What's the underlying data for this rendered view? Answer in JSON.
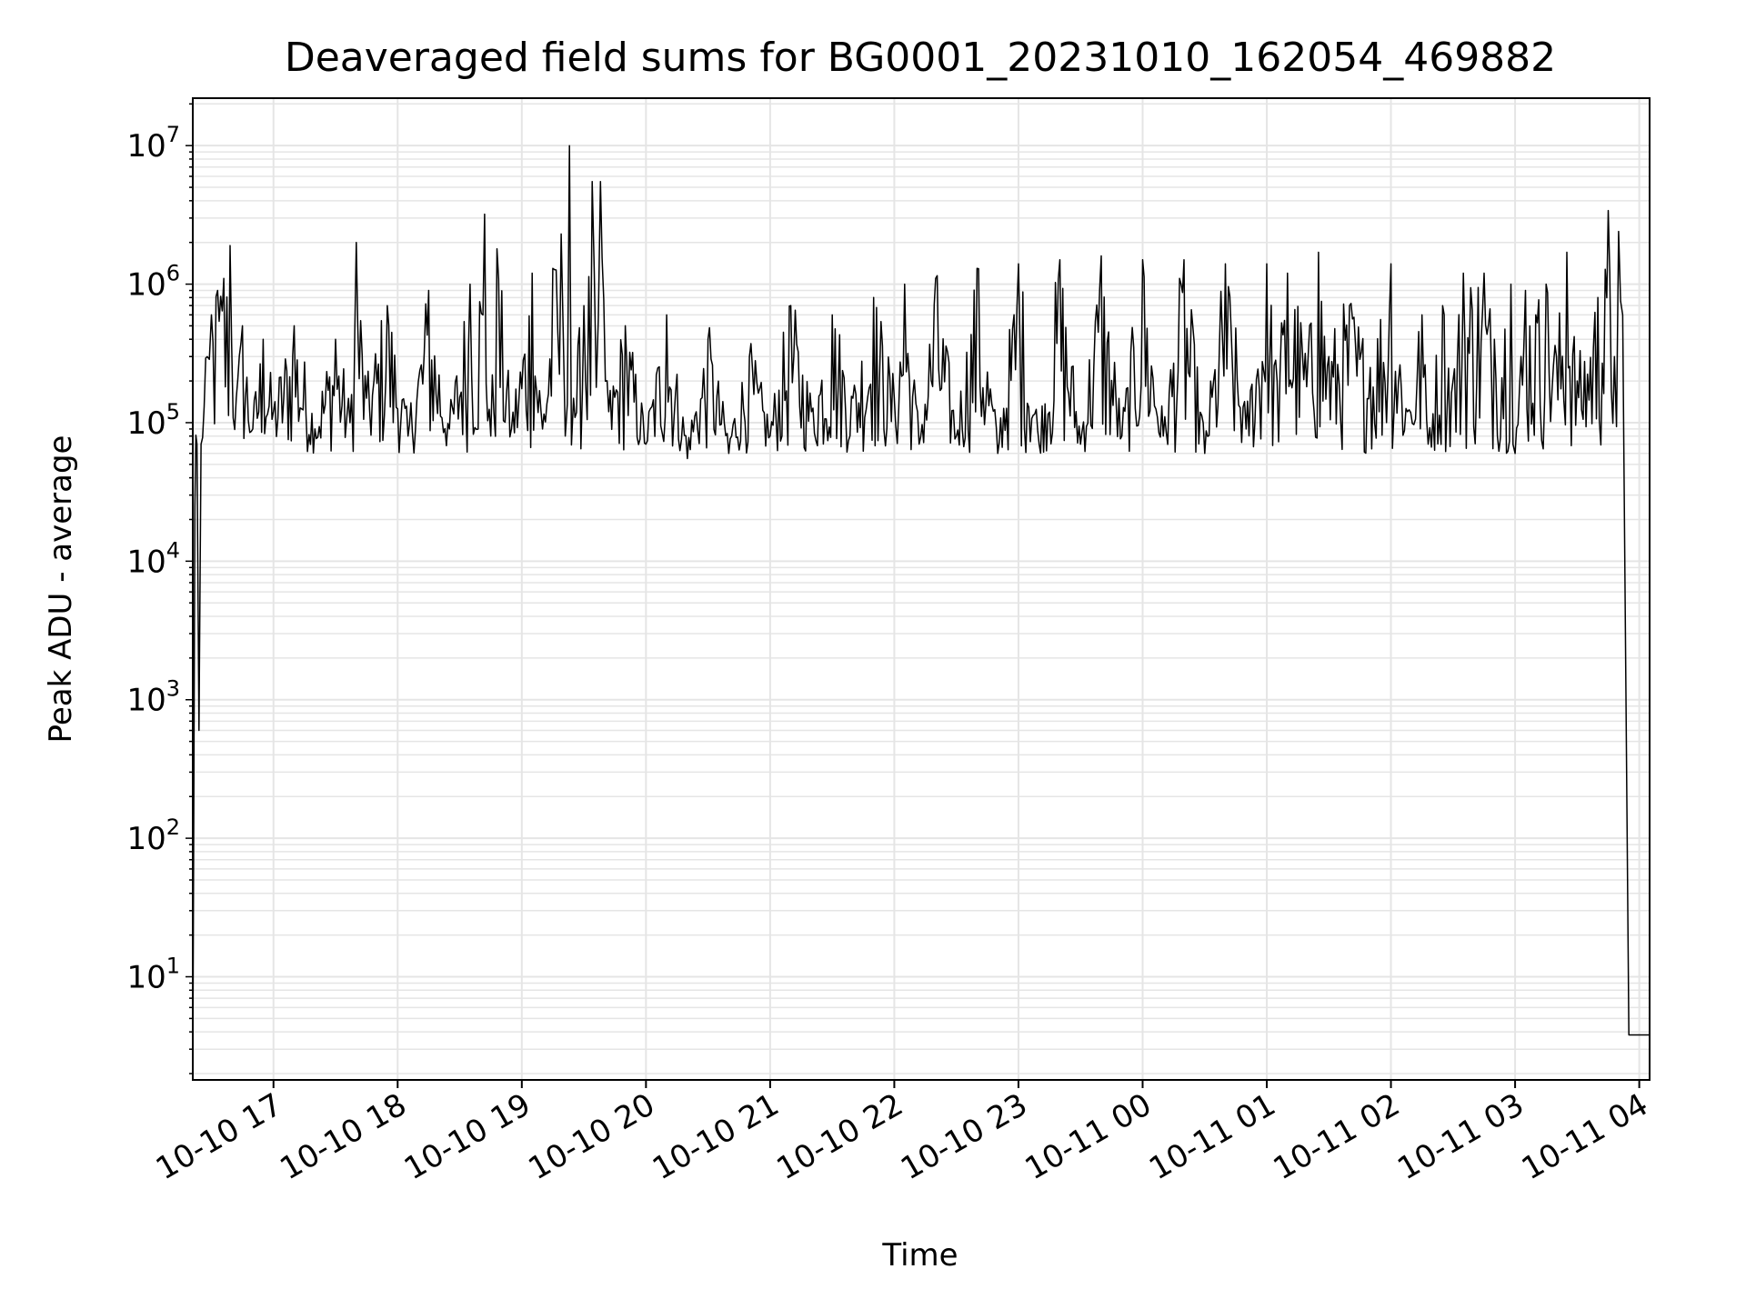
{
  "chart_data": {
    "type": "line",
    "title": "Deaveraged field sums for BG0001_20231010_162054_469882",
    "xlabel": "Time",
    "ylabel": "Peak ADU - average",
    "yscale": "log",
    "xlim": [
      "2023-10-10 16:21",
      "2023-10-11 04:05"
    ],
    "ylim": [
      1.8,
      22000000.0
    ],
    "grid": true,
    "line_color": "#000000",
    "grid_color": "#e5e5e5",
    "x_ticks": [
      {
        "value": "2023-10-10 17:00",
        "label": "10-10 17"
      },
      {
        "value": "2023-10-10 18:00",
        "label": "10-10 18"
      },
      {
        "value": "2023-10-10 19:00",
        "label": "10-10 19"
      },
      {
        "value": "2023-10-10 20:00",
        "label": "10-10 20"
      },
      {
        "value": "2023-10-10 21:00",
        "label": "10-10 21"
      },
      {
        "value": "2023-10-10 22:00",
        "label": "10-10 22"
      },
      {
        "value": "2023-10-10 23:00",
        "label": "10-10 23"
      },
      {
        "value": "2023-10-11 00:00",
        "label": "10-11 00"
      },
      {
        "value": "2023-10-11 01:00",
        "label": "10-11 01"
      },
      {
        "value": "2023-10-11 02:00",
        "label": "10-11 02"
      },
      {
        "value": "2023-10-11 03:00",
        "label": "10-11 03"
      },
      {
        "value": "2023-10-11 04:00",
        "label": "10-11 04"
      }
    ],
    "y_ticks": [
      {
        "value": 10,
        "base": "10",
        "exp": "1"
      },
      {
        "value": 100,
        "base": "10",
        "exp": "2"
      },
      {
        "value": 1000,
        "base": "10",
        "exp": "3"
      },
      {
        "value": 10000,
        "base": "10",
        "exp": "4"
      },
      {
        "value": 100000,
        "base": "10",
        "exp": "5"
      },
      {
        "value": 1000000,
        "base": "10",
        "exp": "6"
      },
      {
        "value": 10000000,
        "base": "10",
        "exp": "7"
      }
    ],
    "series": [
      {
        "points": [
          [
            "2023-10-10 16:21",
            1.8
          ],
          [
            "2023-10-10 16:22",
            25000
          ],
          [
            "2023-10-10 16:23",
            70000
          ],
          [
            "2023-10-10 16:24",
            600
          ],
          [
            "2023-10-10 16:25",
            70000
          ],
          [
            "2023-10-10 16:28",
            300000
          ],
          [
            "2023-10-10 16:30",
            600000
          ],
          [
            "2023-10-10 16:33",
            900000
          ],
          [
            "2023-10-10 16:36",
            1100000
          ],
          [
            "2023-10-10 16:39",
            1900000
          ],
          [
            "2023-10-10 16:42",
            150000
          ],
          [
            "2023-10-10 16:45",
            500000
          ],
          [
            "2023-10-10 16:50",
            90000
          ],
          [
            "2023-10-10 16:55",
            400000
          ],
          [
            "2023-10-10 17:00",
            120000
          ],
          [
            "2023-10-10 17:10",
            500000
          ],
          [
            "2023-10-10 17:20",
            90000
          ],
          [
            "2023-10-10 17:30",
            400000
          ],
          [
            "2023-10-10 17:37",
            100000
          ],
          [
            "2023-10-10 17:40",
            2000000
          ],
          [
            "2023-10-10 17:45",
            150000
          ],
          [
            "2023-10-10 17:55",
            700000
          ],
          [
            "2023-10-10 18:05",
            80000
          ],
          [
            "2023-10-10 18:15",
            900000
          ],
          [
            "2023-10-10 18:25",
            90000
          ],
          [
            "2023-10-10 18:35",
            1000000
          ],
          [
            "2023-10-10 18:42",
            3200000
          ],
          [
            "2023-10-10 18:45",
            80000
          ],
          [
            "2023-10-10 18:48",
            1800000
          ],
          [
            "2023-10-10 18:55",
            90000
          ],
          [
            "2023-10-10 19:05",
            1200000
          ],
          [
            "2023-10-10 19:10",
            90000
          ],
          [
            "2023-10-10 19:15",
            1300000
          ],
          [
            "2023-10-10 19:19",
            2300000
          ],
          [
            "2023-10-10 19:21",
            80000
          ],
          [
            "2023-10-10 19:23",
            10000000
          ],
          [
            "2023-10-10 19:25",
            150000
          ],
          [
            "2023-10-10 19:30",
            700000
          ],
          [
            "2023-10-10 19:34",
            5500000
          ],
          [
            "2023-10-10 19:36",
            180000
          ],
          [
            "2023-10-10 19:38",
            5500000
          ],
          [
            "2023-10-10 19:42",
            120000
          ],
          [
            "2023-10-10 19:50",
            500000
          ],
          [
            "2023-10-10 20:00",
            70000
          ],
          [
            "2023-10-10 20:10",
            600000
          ],
          [
            "2023-10-10 20:20",
            55000
          ],
          [
            "2023-10-10 20:30",
            400000
          ],
          [
            "2023-10-10 20:40",
            60000
          ],
          [
            "2023-10-10 20:50",
            300000
          ],
          [
            "2023-10-10 21:00",
            80000
          ],
          [
            "2023-10-10 21:10",
            700000
          ],
          [
            "2023-10-10 21:20",
            120000
          ],
          [
            "2023-10-10 21:30",
            600000
          ],
          [
            "2023-10-10 21:40",
            150000
          ],
          [
            "2023-10-10 21:50",
            800000
          ],
          [
            "2023-10-10 22:00",
            150000
          ],
          [
            "2023-10-10 22:05",
            1000000
          ],
          [
            "2023-10-10 22:12",
            70000
          ],
          [
            "2023-10-10 22:20",
            1100000
          ],
          [
            "2023-10-10 22:30",
            80000
          ],
          [
            "2023-10-10 22:40",
            1300000
          ],
          [
            "2023-10-10 22:50",
            60000
          ],
          [
            "2023-10-10 23:00",
            1400000
          ],
          [
            "2023-10-10 23:10",
            70000
          ],
          [
            "2023-10-10 23:20",
            1500000
          ],
          [
            "2023-10-10 23:30",
            70000
          ],
          [
            "2023-10-10 23:40",
            1600000
          ],
          [
            "2023-10-10 23:50",
            80000
          ],
          [
            "2023-10-11 00:00",
            1500000
          ],
          [
            "2023-10-11 00:10",
            80000
          ],
          [
            "2023-10-11 00:20",
            1500000
          ],
          [
            "2023-10-11 00:30",
            60000
          ],
          [
            "2023-10-11 00:40",
            1400000
          ],
          [
            "2023-10-11 00:50",
            90000
          ],
          [
            "2023-10-11 01:00",
            1400000
          ],
          [
            "2023-10-11 01:05",
            200000
          ],
          [
            "2023-10-11 01:10",
            1200000
          ],
          [
            "2023-10-11 01:20",
            300000
          ],
          [
            "2023-10-11 01:25",
            1700000
          ],
          [
            "2023-10-11 01:30",
            300000
          ],
          [
            "2023-10-11 01:40",
            700000
          ],
          [
            "2023-10-11 01:50",
            250000
          ],
          [
            "2023-10-11 02:00",
            1400000
          ],
          [
            "2023-10-11 02:08",
            120000
          ],
          [
            "2023-10-11 02:15",
            600000
          ],
          [
            "2023-10-11 02:18",
            70000
          ],
          [
            "2023-10-11 02:25",
            700000
          ],
          [
            "2023-10-11 02:30",
            200000
          ],
          [
            "2023-10-11 02:35",
            1200000
          ],
          [
            "2023-10-11 02:45",
            1200000
          ],
          [
            "2023-10-11 02:50",
            400000
          ],
          [
            "2023-10-11 02:58",
            1000000
          ],
          [
            "2023-10-11 03:00",
            60000
          ],
          [
            "2023-10-11 03:05",
            900000
          ],
          [
            "2023-10-11 03:10",
            600000
          ],
          [
            "2023-10-11 03:15",
            1000000
          ],
          [
            "2023-10-11 03:20",
            300000
          ],
          [
            "2023-10-11 03:25",
            1700000
          ],
          [
            "2023-10-11 03:30",
            200000
          ],
          [
            "2023-10-11 03:40",
            800000
          ],
          [
            "2023-10-11 03:45",
            3400000
          ],
          [
            "2023-10-11 03:48",
            300000
          ],
          [
            "2023-10-11 03:50",
            2400000
          ],
          [
            "2023-10-11 03:52",
            600000
          ],
          [
            "2023-10-11 03:55",
            3.8
          ],
          [
            "2023-10-11 04:05",
            3.8
          ]
        ]
      }
    ]
  }
}
